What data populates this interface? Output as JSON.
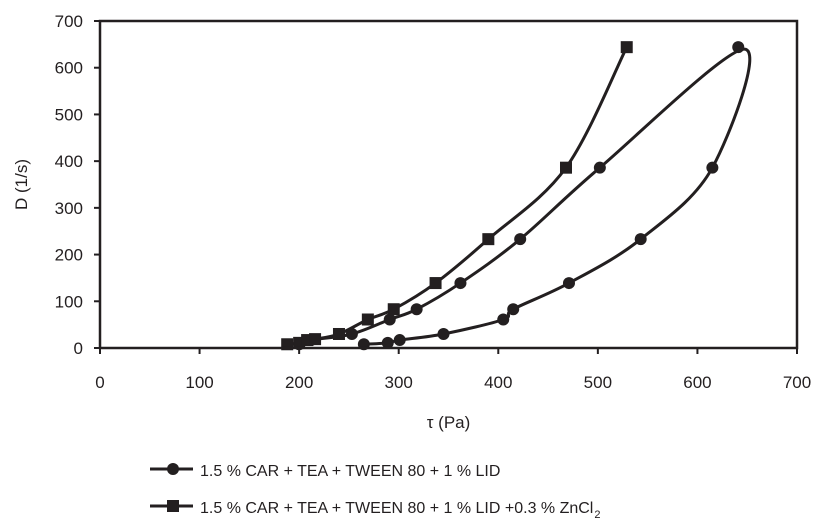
{
  "chart_data": {
    "type": "scatter",
    "title": "",
    "xlabel": "τ (Pa)",
    "ylabel": "D (1/s)",
    "xlim": [
      0,
      700
    ],
    "ylim": [
      0,
      700
    ],
    "x_ticks": [
      0,
      100,
      200,
      300,
      400,
      500,
      600,
      700
    ],
    "y_ticks": [
      0,
      100,
      200,
      300,
      400,
      500,
      600,
      700
    ],
    "grid": false,
    "legend_position": "bottom",
    "series": [
      {
        "name": "1.5 % CAR + TEA + TWEEN 80 + 1 % LID",
        "marker": "circle",
        "color": "#231f20",
        "up_curve": [
          {
            "x": 200,
            "y": 8
          },
          {
            "x": 212,
            "y": 17
          },
          {
            "x": 253,
            "y": 30
          },
          {
            "x": 291,
            "y": 61
          },
          {
            "x": 318,
            "y": 83
          },
          {
            "x": 362,
            "y": 139
          },
          {
            "x": 422,
            "y": 233
          },
          {
            "x": 502,
            "y": 386
          },
          {
            "x": 641,
            "y": 644
          }
        ],
        "down_curve": [
          {
            "x": 641,
            "y": 644
          },
          {
            "x": 615,
            "y": 386
          },
          {
            "x": 543,
            "y": 233
          },
          {
            "x": 471,
            "y": 139
          },
          {
            "x": 415,
            "y": 83
          },
          {
            "x": 405,
            "y": 61
          },
          {
            "x": 345,
            "y": 30
          },
          {
            "x": 301,
            "y": 17
          },
          {
            "x": 289,
            "y": 11
          },
          {
            "x": 265,
            "y": 8
          }
        ]
      },
      {
        "name": "1.5 % CAR + TEA + TWEEN 80 + 1 % LID +0.3 % ZnCl",
        "name_subscript": "2",
        "marker": "square",
        "color": "#231f20",
        "up_curve": [
          {
            "x": 188,
            "y": 8
          },
          {
            "x": 200,
            "y": 11
          },
          {
            "x": 208,
            "y": 17
          },
          {
            "x": 216,
            "y": 19
          },
          {
            "x": 240,
            "y": 30
          },
          {
            "x": 269,
            "y": 61
          },
          {
            "x": 295,
            "y": 83
          },
          {
            "x": 337,
            "y": 139
          },
          {
            "x": 390,
            "y": 233
          },
          {
            "x": 468,
            "y": 386
          },
          {
            "x": 529,
            "y": 644
          }
        ],
        "down_curve": []
      }
    ]
  }
}
